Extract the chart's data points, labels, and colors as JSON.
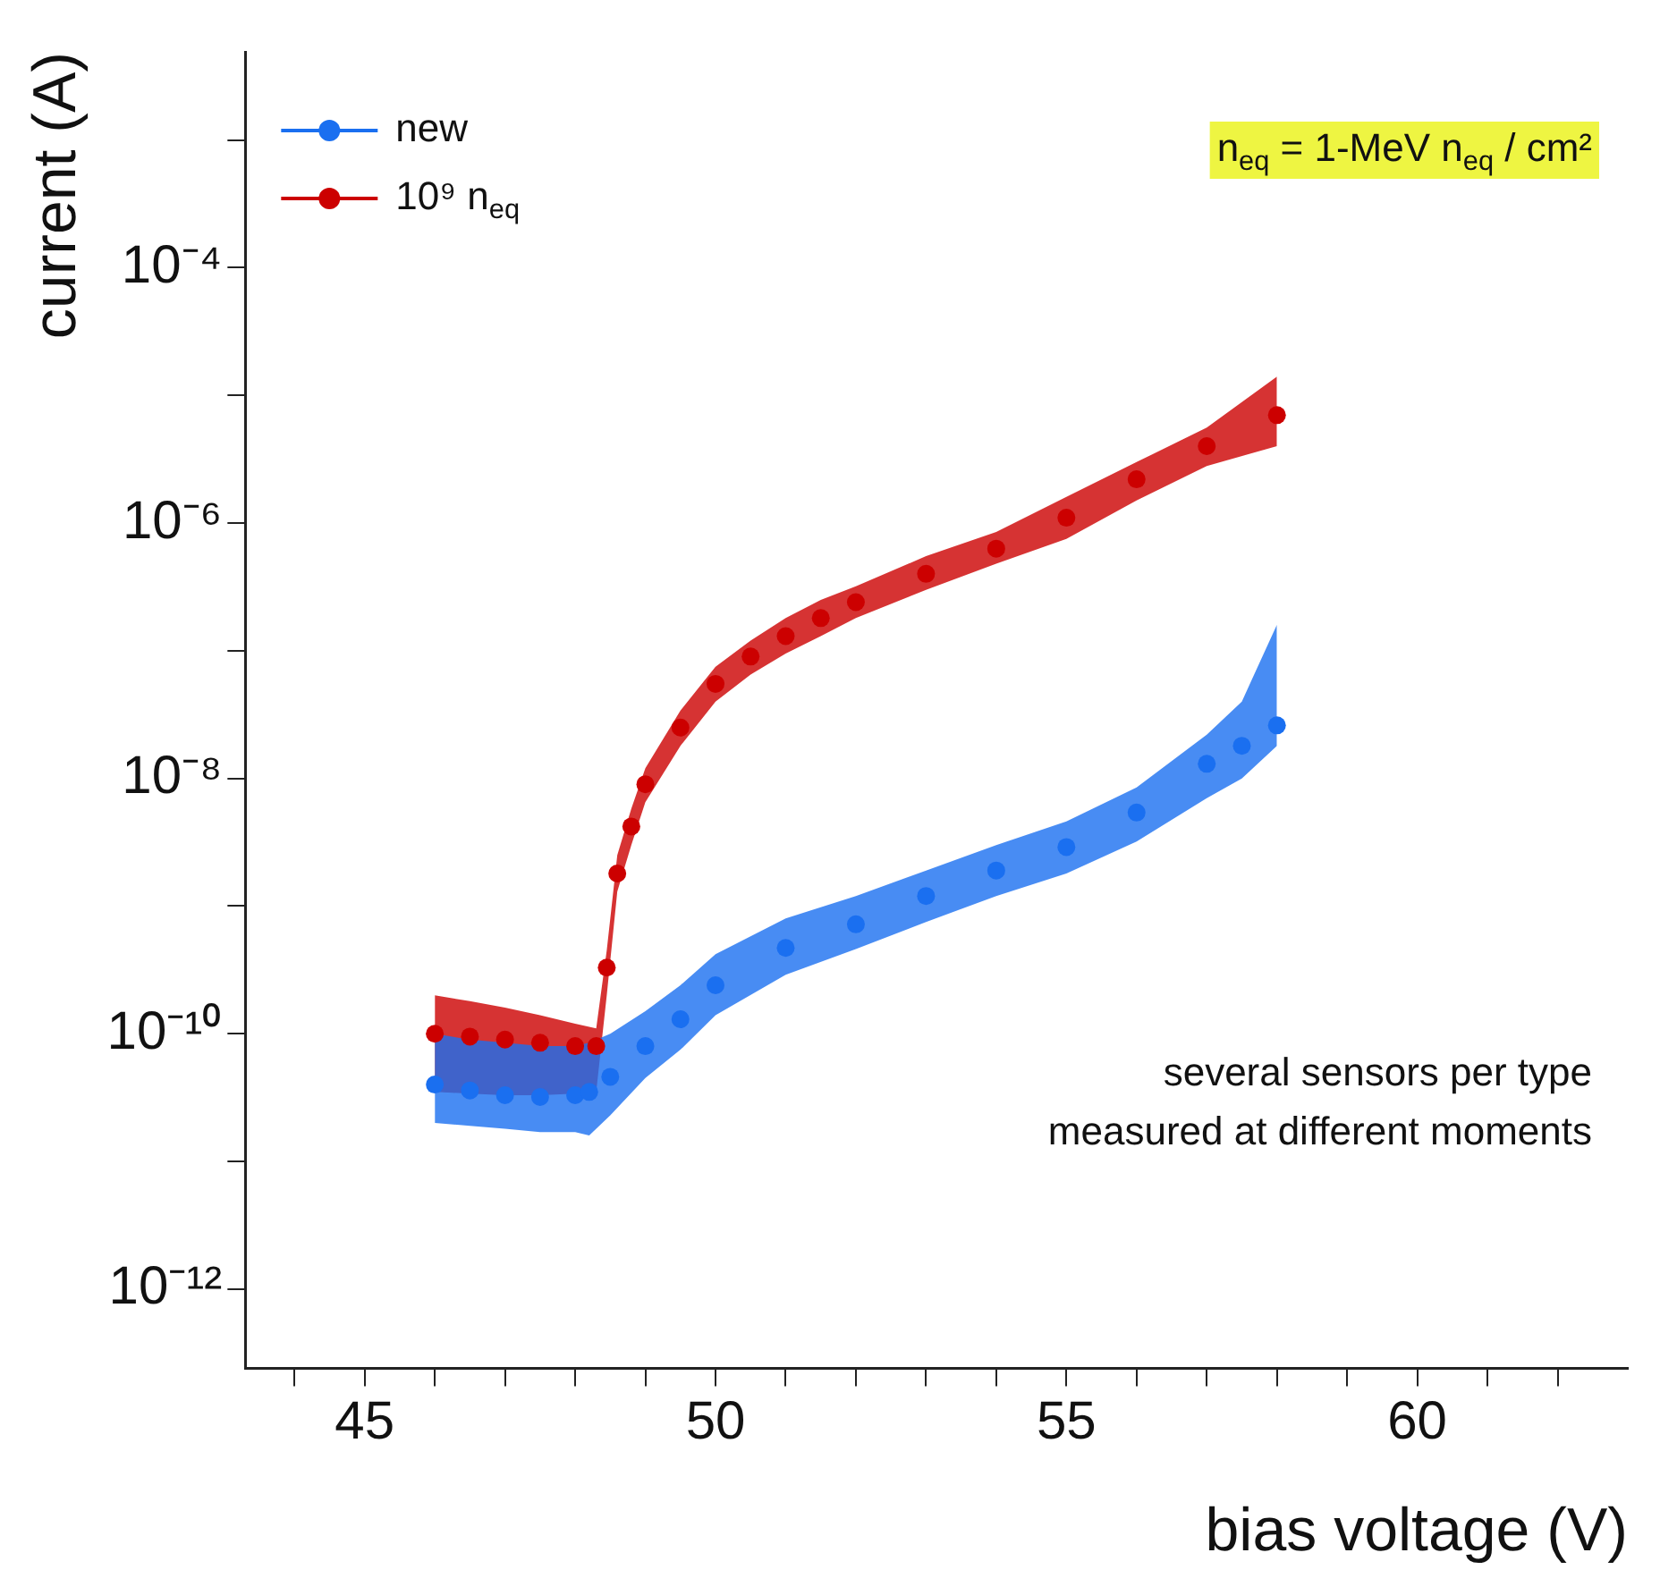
{
  "chart_data": {
    "type": "scatter",
    "xlabel": "bias voltage (V)",
    "ylabel": "current (A)",
    "log": "y",
    "xlim": [
      43.3,
      63
    ],
    "xticks": [
      {
        "value": 44,
        "label": null
      },
      45,
      {
        "value": 46,
        "label": null
      },
      {
        "value": 47,
        "label": null
      },
      {
        "value": 48,
        "label": null
      },
      {
        "value": 49,
        "label": null
      },
      50,
      {
        "value": 51,
        "label": null
      },
      {
        "value": 52,
        "label": null
      },
      {
        "value": 53,
        "label": null
      },
      {
        "value": 54,
        "label": null
      },
      55,
      {
        "value": 56,
        "label": null
      },
      {
        "value": 57,
        "label": null
      },
      {
        "value": 58,
        "label": null
      },
      {
        "value": 59,
        "label": null
      },
      60,
      {
        "value": 61,
        "label": null
      },
      {
        "value": 62,
        "label": null
      }
    ],
    "ylim": [
      2.4e-13,
      0.0049
    ],
    "yticks": [
      {
        "value": 1e-12,
        "label": "10⁻¹²"
      },
      {
        "value": 1e-11,
        "label": null
      },
      {
        "value": 1e-10,
        "label": "10⁻¹⁰"
      },
      {
        "value": 1e-09,
        "label": null
      },
      {
        "value": 1e-08,
        "label": "10⁻⁸"
      },
      {
        "value": 1e-07,
        "label": null
      },
      {
        "value": 1e-06,
        "label": "10⁻⁶"
      },
      {
        "value": 1e-05,
        "label": null
      },
      {
        "value": 0.0001,
        "label": "10⁻⁴"
      },
      {
        "value": 0.001,
        "label": null
      }
    ],
    "grid": false,
    "legend": "top left",
    "marker": "circle",
    "annotations": [
      "n$_{eq}$ = 1-MeV n$_{eq}$ / cm²",
      "several sensors per type",
      "measured at different moments"
    ],
    "series": [
      {
        "name": "new",
        "color": "#1a6ff0",
        "x": [
          46,
          46.5,
          47,
          47.5,
          48,
          48.2,
          48.5,
          49,
          49.5,
          50,
          51,
          52,
          53,
          54,
          55,
          56,
          57,
          57.5,
          58
        ],
        "values": [
          4e-11,
          3.6e-11,
          3.3e-11,
          3.2e-11,
          3.3e-11,
          3.5e-11,
          4.6e-11,
          8e-11,
          1.3e-10,
          2.4e-10,
          4.7e-10,
          7.2e-10,
          1.2e-09,
          1.9e-09,
          2.9e-09,
          5.4e-09,
          1.3e-08,
          1.8e-08,
          2.6e-08
        ],
        "lower": [
          2e-11,
          1.9e-11,
          1.8e-11,
          1.7e-11,
          1.7e-11,
          1.6e-11,
          2.3e-11,
          4.5e-11,
          7.5e-11,
          1.4e-10,
          2.9e-10,
          4.6e-10,
          7.5e-10,
          1.2e-09,
          1.8e-09,
          3.2e-09,
          7e-09,
          1e-08,
          1.8e-08
        ],
        "upper": [
          1e-10,
          9e-11,
          8.5e-11,
          8e-11,
          8e-11,
          8.5e-11,
          1e-10,
          1.5e-10,
          2.4e-10,
          4.2e-10,
          8e-10,
          1.2e-09,
          1.9e-09,
          3e-09,
          4.6e-09,
          8.5e-09,
          2.2e-08,
          4e-08,
          1.6e-07
        ]
      },
      {
        "name": "10⁹ n$_{eq}$",
        "color": "#cc0000",
        "x": [
          46,
          46.5,
          47,
          47.5,
          48,
          48.3,
          48.45,
          48.6,
          48.8,
          49,
          49.5,
          50,
          50.5,
          51,
          51.5,
          52,
          53,
          54,
          55,
          56,
          57,
          58
        ],
        "values": [
          1e-10,
          9.5e-11,
          9e-11,
          8.5e-11,
          8e-11,
          8e-11,
          3.3e-10,
          1.8e-09,
          4.2e-09,
          9e-09,
          2.5e-08,
          5.5e-08,
          9e-08,
          1.3e-07,
          1.8e-07,
          2.4e-07,
          4e-07,
          6.3e-07,
          1.1e-06,
          2.2e-06,
          4e-06,
          7e-06
        ],
        "lower": [
          3.5e-11,
          3.4e-11,
          3.3e-11,
          3.3e-11,
          3.4e-11,
          3.5e-11,
          2e-10,
          1.3e-09,
          3e-09,
          6.5e-09,
          1.8e-08,
          4e-08,
          6.5e-08,
          9.5e-08,
          1.3e-07,
          1.8e-07,
          3e-07,
          4.8e-07,
          7.5e-07,
          1.5e-06,
          2.8e-06,
          4e-06
        ],
        "upper": [
          2e-10,
          1.8e-10,
          1.6e-10,
          1.4e-10,
          1.2e-10,
          1.1e-10,
          4.5e-10,
          2.5e-09,
          5.8e-09,
          1.2e-08,
          3.4e-08,
          7.5e-08,
          1.2e-07,
          1.8e-07,
          2.5e-07,
          3.2e-07,
          5.5e-07,
          8.5e-07,
          1.6e-06,
          3e-06,
          5.6e-06,
          1.4e-05
        ]
      }
    ]
  }
}
